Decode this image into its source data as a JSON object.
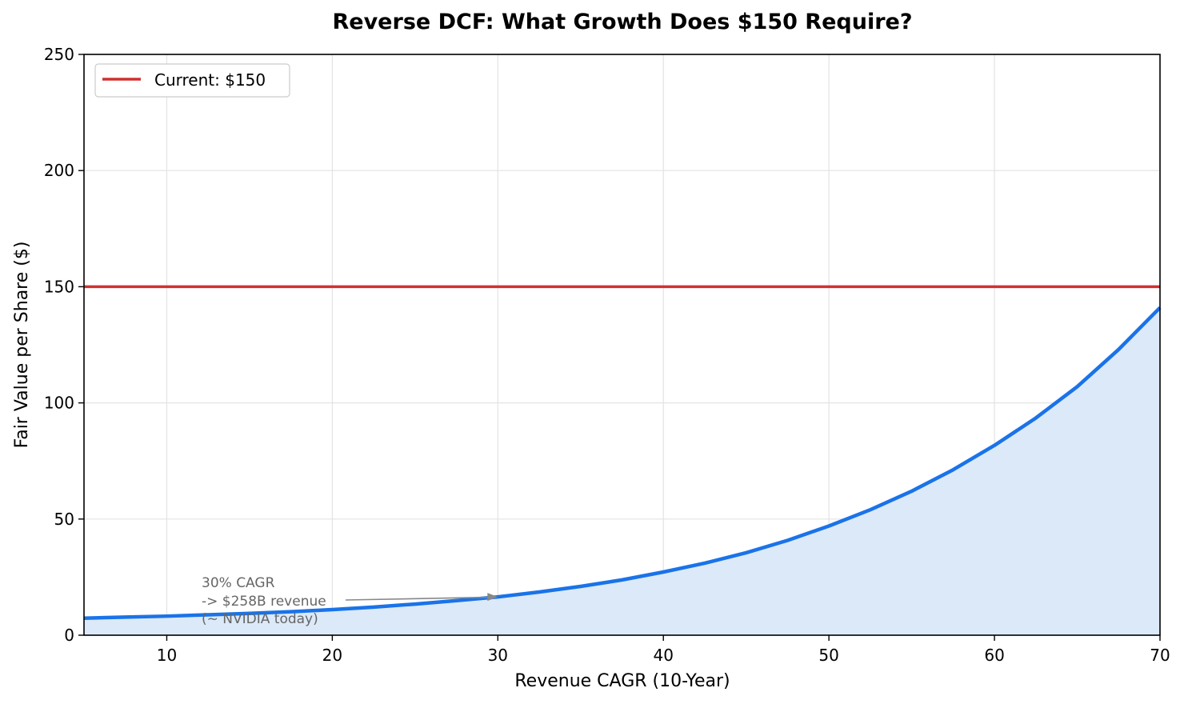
{
  "chart_data": {
    "type": "area",
    "title": "Reverse DCF: What Growth Does $150 Require?",
    "xlabel": "Revenue CAGR (10-Year)",
    "ylabel": "Fair Value per Share ($)",
    "xlim": [
      5,
      70
    ],
    "ylim": [
      0,
      250
    ],
    "xticks": [
      10,
      20,
      30,
      40,
      50,
      60,
      70
    ],
    "yticks": [
      0,
      50,
      100,
      150,
      200,
      250
    ],
    "grid": true,
    "legend_position": "top-left",
    "series": [
      {
        "color": "#1a73e8",
        "fill_color": "#dce9f9",
        "x": [
          5,
          7.5,
          10,
          12.5,
          15,
          17.5,
          20,
          22.5,
          25,
          27.5,
          30,
          32.5,
          35,
          37.5,
          40,
          42.5,
          45,
          47.5,
          50,
          52.5,
          55,
          57.5,
          60,
          62.5,
          65,
          67.5,
          70
        ],
        "y": [
          7.3,
          7.8,
          8.2,
          8.8,
          9.4,
          10.1,
          11.0,
          12.1,
          13.4,
          14.9,
          16.5,
          18.6,
          21.0,
          23.8,
          27.2,
          31.0,
          35.5,
          40.8,
          47.0,
          54.0,
          62.0,
          71.2,
          81.7,
          93.5,
          107.0,
          123.0,
          141.0
        ]
      }
    ],
    "reference_line": {
      "label": "Current: $150",
      "y": 150,
      "color": "#d03030"
    },
    "annotation": {
      "lines": [
        "30% CAGR",
        "-> $258B revenue",
        "(~ NVIDIA today)"
      ],
      "arrow_target": {
        "x": 30,
        "y": 16.5
      },
      "color": "#666666"
    }
  }
}
